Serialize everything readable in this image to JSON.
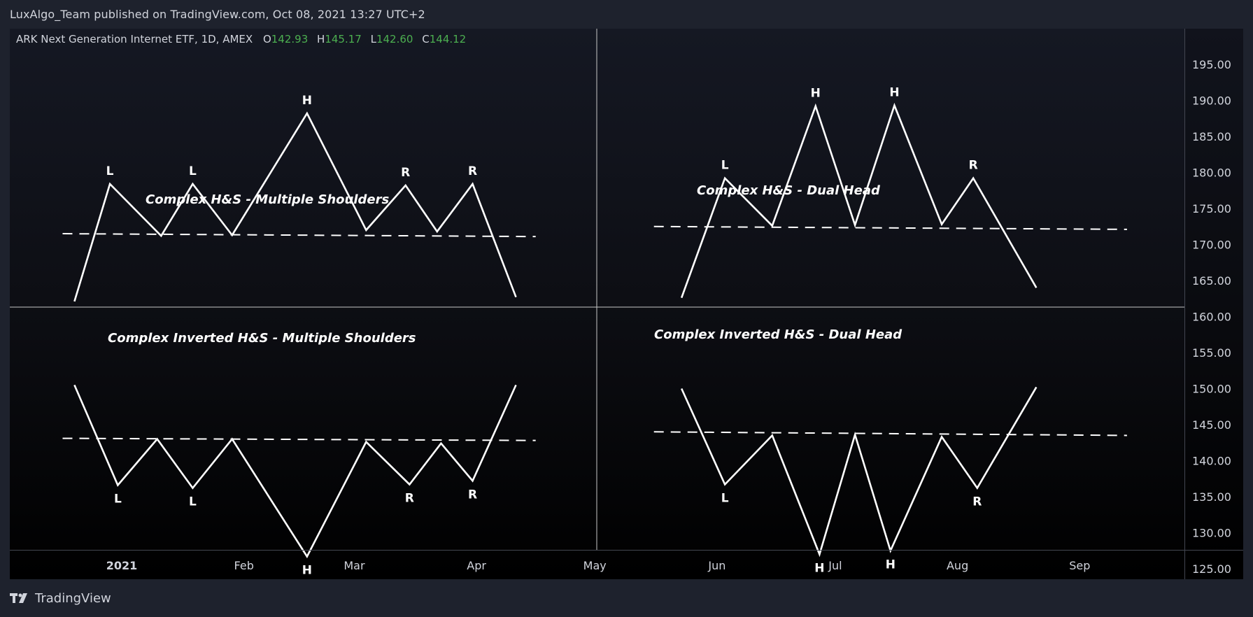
{
  "header": {
    "attribution": "LuxAlgo_Team published on TradingView.com, Oct 08, 2021 13:27 UTC+2"
  },
  "footer": {
    "brand": "TradingView"
  },
  "legend": {
    "symbol": "ARK Next Generation Internet ETF, 1D, AMEX",
    "open_label": "O",
    "open": "142.93",
    "high_label": "H",
    "high": "145.17",
    "low_label": "L",
    "low": "142.60",
    "close_label": "C",
    "close": "144.12"
  },
  "colors": {
    "background": "#1e222d",
    "line": "#ffffff",
    "text": "#d1d4dc",
    "ohlc_value": "#4caf50",
    "divider": "#c8c8c8"
  },
  "chart_data": {
    "type": "line",
    "x_ticks": [
      "2021",
      "Feb",
      "Mar",
      "Apr",
      "May",
      "Jun",
      "Jul",
      "Aug",
      "Sep"
    ],
    "y_ticks": [
      "195.00",
      "190.00",
      "185.00",
      "180.00",
      "175.00",
      "170.00",
      "165.00",
      "160.00",
      "155.00",
      "150.00",
      "145.00",
      "140.00",
      "135.00",
      "130.00",
      "125.00"
    ],
    "ylim": [
      122,
      197
    ],
    "grid": false,
    "patterns": [
      {
        "title": "Complex H&S - Multiple Shoulders",
        "points": [
          {
            "x": "2020-12-20",
            "y": 162.1
          },
          {
            "x": "2020-12-29",
            "y": 178.4,
            "label": "L"
          },
          {
            "x": "2021-01-11",
            "y": 171.2
          },
          {
            "x": "2021-01-19",
            "y": 178.4,
            "label": "L"
          },
          {
            "x": "2021-01-29",
            "y": 171.3
          },
          {
            "x": "2021-02-17",
            "y": 188.2,
            "label": "H"
          },
          {
            "x": "2021-03-04",
            "y": 172.0
          },
          {
            "x": "2021-03-14",
            "y": 178.2,
            "label": "R"
          },
          {
            "x": "2021-03-22",
            "y": 171.8
          },
          {
            "x": "2021-03-31",
            "y": 178.4,
            "label": "R"
          },
          {
            "x": "2021-04-11",
            "y": 162.7
          }
        ],
        "neckline": [
          {
            "x": "2020-12-17",
            "y": 171.5
          },
          {
            "x": "2021-04-16",
            "y": 171.1
          }
        ]
      },
      {
        "title": "Complex H&S - Dual Head",
        "points": [
          {
            "x": "2021-05-23",
            "y": 162.6
          },
          {
            "x": "2021-06-03",
            "y": 179.2,
            "label": "L"
          },
          {
            "x": "2021-06-15",
            "y": 172.6
          },
          {
            "x": "2021-06-26",
            "y": 189.2,
            "label": "H"
          },
          {
            "x": "2021-07-06",
            "y": 172.7
          },
          {
            "x": "2021-07-16",
            "y": 189.3,
            "label": "H"
          },
          {
            "x": "2021-07-28",
            "y": 172.8
          },
          {
            "x": "2021-08-05",
            "y": 179.2,
            "label": "R"
          },
          {
            "x": "2021-08-21",
            "y": 164.0
          }
        ],
        "neckline": [
          {
            "x": "2021-05-16",
            "y": 172.5
          },
          {
            "x": "2021-09-13",
            "y": 172.1
          }
        ]
      },
      {
        "title": "Complex Inverted H&S - Multiple Shoulders",
        "points": [
          {
            "x": "2020-12-20",
            "y": 150.5
          },
          {
            "x": "2020-12-31",
            "y": 136.6,
            "label": "L"
          },
          {
            "x": "2021-01-10",
            "y": 143.0
          },
          {
            "x": "2021-01-19",
            "y": 136.2,
            "label": "L"
          },
          {
            "x": "2021-01-29",
            "y": 143.0
          },
          {
            "x": "2021-02-17",
            "y": 126.7,
            "label": "H"
          },
          {
            "x": "2021-03-04",
            "y": 142.6
          },
          {
            "x": "2021-03-15",
            "y": 136.7,
            "label": "R"
          },
          {
            "x": "2021-03-23",
            "y": 142.4
          },
          {
            "x": "2021-03-31",
            "y": 137.2,
            "label": "R"
          },
          {
            "x": "2021-04-11",
            "y": 150.5
          }
        ],
        "neckline": [
          {
            "x": "2020-12-17",
            "y": 143.1
          },
          {
            "x": "2021-04-16",
            "y": 142.8
          }
        ]
      },
      {
        "title": "Complex Inverted H&S - Dual Head",
        "points": [
          {
            "x": "2021-05-23",
            "y": 150.0
          },
          {
            "x": "2021-06-03",
            "y": 136.7,
            "label": "L"
          },
          {
            "x": "2021-06-15",
            "y": 143.5
          },
          {
            "x": "2021-06-27",
            "y": 127.0,
            "label": "H"
          },
          {
            "x": "2021-07-06",
            "y": 143.6
          },
          {
            "x": "2021-07-15",
            "y": 127.5,
            "label": "H"
          },
          {
            "x": "2021-07-28",
            "y": 143.3
          },
          {
            "x": "2021-08-06",
            "y": 136.2,
            "label": "R"
          },
          {
            "x": "2021-08-21",
            "y": 150.2
          }
        ],
        "neckline": [
          {
            "x": "2021-05-16",
            "y": 144.0
          },
          {
            "x": "2021-09-13",
            "y": 143.5
          }
        ]
      }
    ]
  }
}
